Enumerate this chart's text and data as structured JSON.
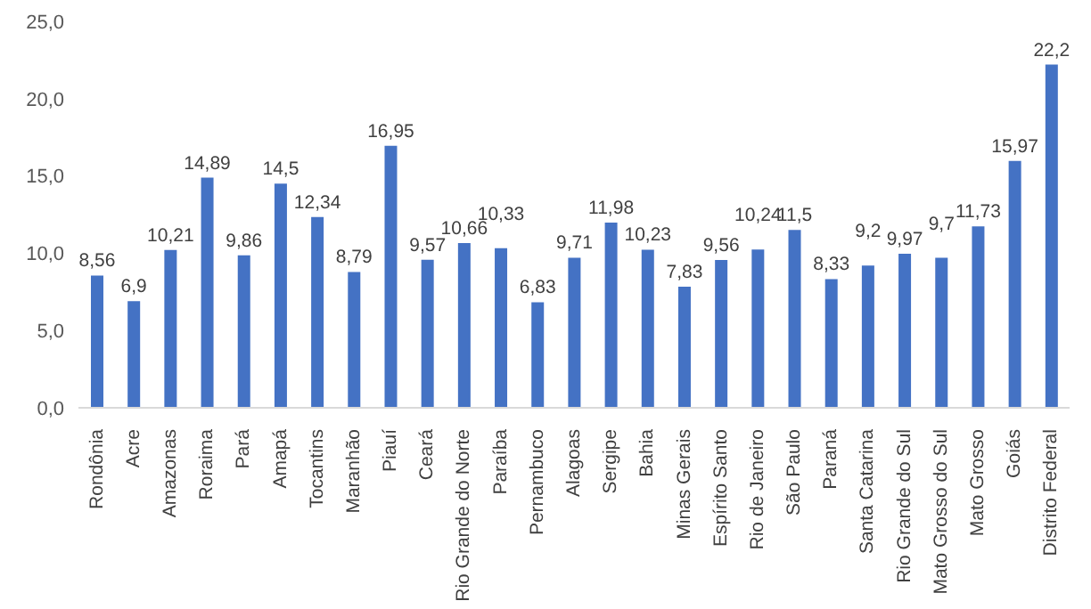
{
  "chart_data": {
    "type": "bar",
    "categories": [
      "Rondônia",
      "Acre",
      "Amazonas",
      "Roraima",
      "Pará",
      "Amapá",
      "Tocantins",
      "Maranhão",
      "Piauí",
      "Ceará",
      "Rio Grande do Norte",
      "Paraíba",
      "Pernambuco",
      "Alagoas",
      "Sergipe",
      "Bahia",
      "Minas Gerais",
      "Espírito Santo",
      "Rio de Janeiro",
      "São Paulo",
      "Paraná",
      "Santa Catarina",
      "Rio Grande do Sul",
      "Mato Grosso do Sul",
      "Mato Grosso",
      "Goiás",
      "Distrito Federal"
    ],
    "values": [
      8.56,
      6.9,
      10.21,
      14.89,
      9.86,
      14.5,
      12.34,
      8.79,
      16.95,
      9.57,
      10.66,
      10.33,
      6.83,
      9.71,
      11.98,
      10.23,
      7.83,
      9.56,
      10.24,
      11.5,
      8.33,
      9.2,
      9.97,
      9.7,
      11.73,
      15.97,
      22.2
    ],
    "value_labels": [
      "8,56",
      "6,9",
      "10,21",
      "14,89",
      "9,86",
      "14,5",
      "12,34",
      "8,79",
      "16,95",
      "9,57",
      "10,66",
      "10,33",
      "6,83",
      "9,71",
      "11,98",
      "10,23",
      "7,83",
      "9,56",
      "10,24",
      "11,5",
      "8,33",
      "9,2",
      "9,97",
      "9,7",
      "11,73",
      "15,97",
      "22,2"
    ],
    "color": "#4472c4",
    "ylim": [
      0,
      25
    ],
    "yticks": [
      {
        "value": 0,
        "label": "0,0"
      },
      {
        "value": 5,
        "label": "5,0"
      },
      {
        "value": 10,
        "label": "10,0"
      },
      {
        "value": 15,
        "label": "15,0"
      },
      {
        "value": 20,
        "label": "20,0"
      },
      {
        "value": 25,
        "label": "25,0"
      }
    ],
    "grid": false
  }
}
